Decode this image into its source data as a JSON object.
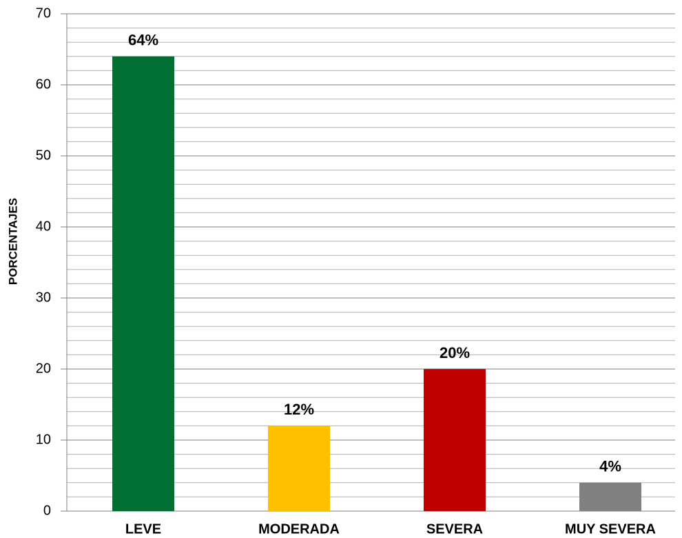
{
  "chart_data": {
    "type": "bar",
    "y_label": "PORCENTAJES",
    "categories": [
      "LEVE",
      "MODERADA",
      "SEVERA",
      "MUY SEVERA"
    ],
    "values": [
      64,
      12,
      20,
      4
    ],
    "value_labels": [
      "64%",
      "12%",
      "20%",
      "4%"
    ],
    "colors": [
      "#037033",
      "#ffc000",
      "#c00000",
      "#808080"
    ],
    "ylim": [
      0,
      70
    ],
    "yticks": [
      0,
      10,
      20,
      30,
      40,
      50,
      60,
      70
    ],
    "minor_yticks": [
      2,
      4,
      6,
      8,
      12,
      14,
      16,
      18,
      22,
      24,
      26,
      28,
      32,
      34,
      36,
      38,
      42,
      44,
      46,
      48,
      52,
      54,
      56,
      58,
      62,
      64,
      66,
      68
    ],
    "grid": true
  }
}
